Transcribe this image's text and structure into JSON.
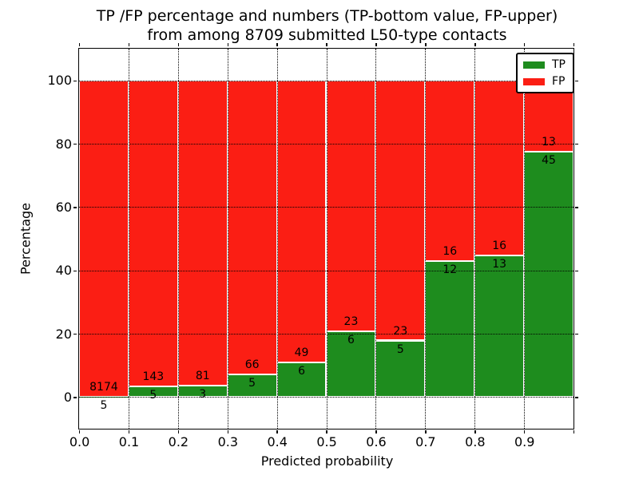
{
  "title_line1": "TP /FP percentage and numbers (TP-bottom value, FP-upper)",
  "title_line2": "from among 8709 submitted L50-type contacts",
  "colors": {
    "tp_green": "#1e8c1e",
    "fp_red": "#fb1e14",
    "frame_black": "#000000",
    "background": "#ffffff"
  },
  "chart_data": {
    "type": "bar",
    "stacked": true,
    "normalized_to_percent": true,
    "title": "TP /FP percentage and numbers (TP-bottom value, FP-upper) from among 8709 submitted L50-type contacts",
    "xlabel": "Predicted probability",
    "ylabel": "Percentage",
    "xlim": [
      0.0,
      1.0
    ],
    "ylim": [
      -10,
      110
    ],
    "grid": "dotted",
    "legend_position": "upper right",
    "total_contacts": 8709,
    "bin_start": [
      0.0,
      0.1,
      0.2,
      0.3,
      0.4,
      0.5,
      0.6,
      0.7,
      0.8,
      0.9
    ],
    "bin_width": 0.1,
    "xtick_labels": [
      "0.0",
      "0.1",
      "0.2",
      "0.3",
      "0.4",
      "0.5",
      "0.6",
      "0.7",
      "0.8",
      "0.9"
    ],
    "ytick_values": [
      0,
      20,
      40,
      60,
      80,
      100
    ],
    "ytick_labels": [
      "0",
      "20",
      "40",
      "60",
      "80",
      "100"
    ],
    "series": [
      {
        "name": "TP",
        "color": "#1e8c1e",
        "counts": [
          5,
          5,
          3,
          5,
          6,
          6,
          5,
          12,
          13,
          45
        ]
      },
      {
        "name": "FP",
        "color": "#fb1e14",
        "counts": [
          8174,
          143,
          81,
          66,
          49,
          23,
          23,
          16,
          16,
          13
        ]
      }
    ],
    "tp_percent_heights": [
      0.06,
      3.38,
      3.57,
      7.04,
      10.91,
      20.69,
      17.86,
      42.86,
      44.83,
      77.59
    ],
    "fp_percent_heights": [
      99.94,
      96.62,
      96.43,
      92.96,
      89.09,
      79.31,
      82.14,
      57.14,
      55.17,
      22.41
    ]
  }
}
